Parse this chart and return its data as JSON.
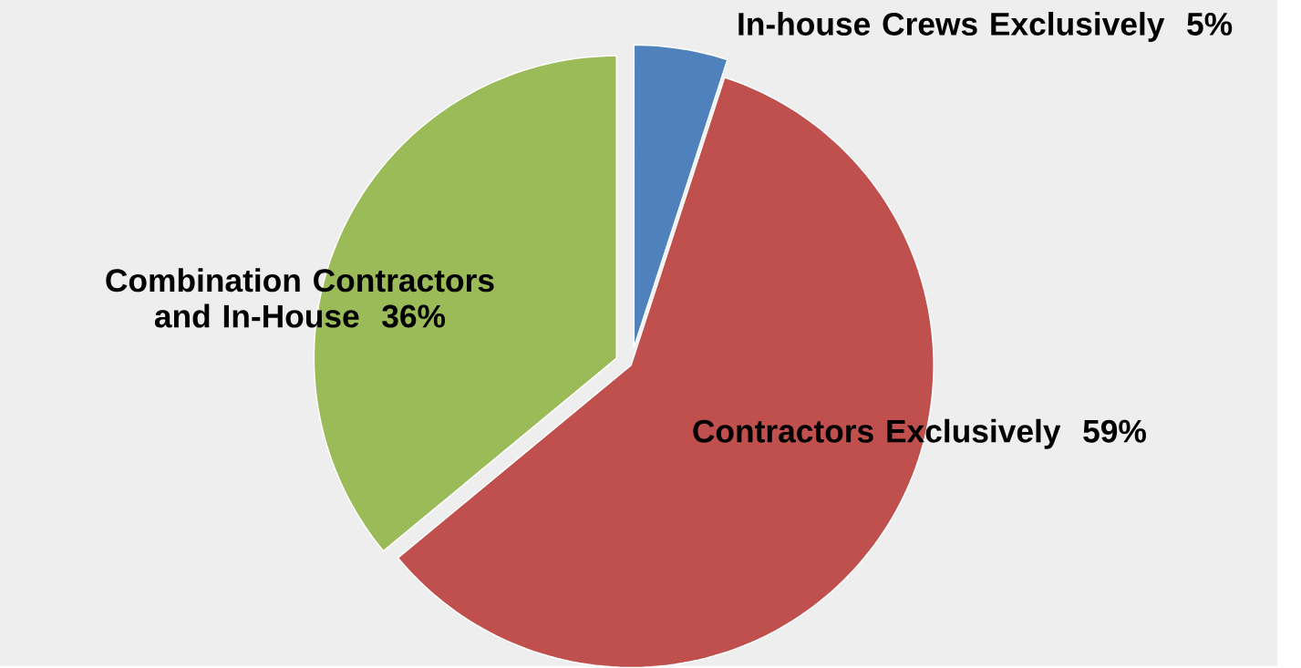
{
  "chart_data": {
    "type": "pie",
    "categories": [
      "In-house Crews Exclusively",
      "Contractors Exclusively",
      "Combination Contractors and In-House"
    ],
    "values": [
      5,
      59,
      36
    ],
    "value_labels": [
      "5%",
      "59%",
      "36%"
    ],
    "colors": [
      "#4f81bd",
      "#c0504d",
      "#9bbb59"
    ]
  }
}
